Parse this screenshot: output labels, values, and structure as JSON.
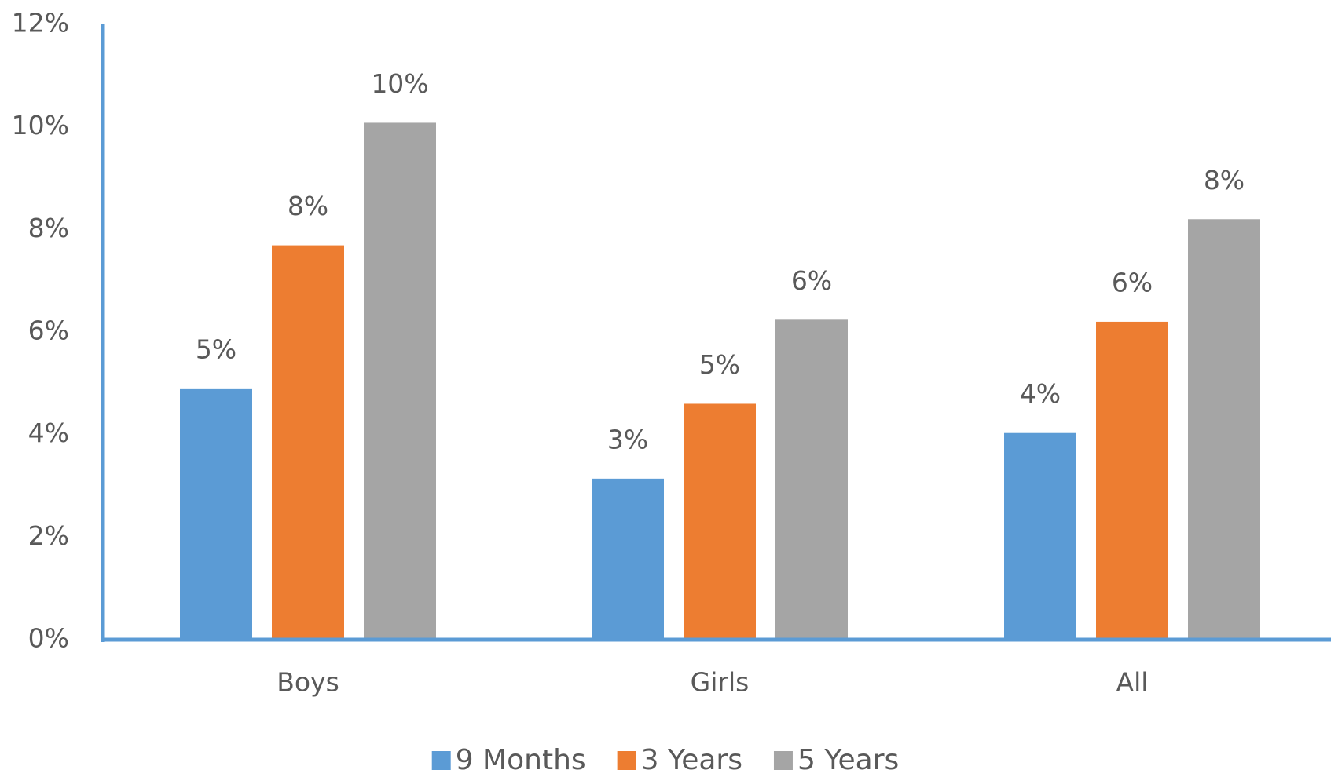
{
  "chart_data": {
    "type": "bar",
    "categories": [
      "Boys",
      "Girls",
      "All"
    ],
    "series": [
      {
        "name": "9 Months",
        "color": "#5b9bd5",
        "values": [
          4.9,
          3.14,
          4.03
        ],
        "value_labels": [
          "5%",
          "3%",
          "4%"
        ]
      },
      {
        "name": "3 Years",
        "color": "#ed7d31",
        "values": [
          7.69,
          4.6,
          6.2
        ],
        "value_labels": [
          "8%",
          "5%",
          "6%"
        ]
      },
      {
        "name": "5 Years",
        "color": "#a5a5a5",
        "values": [
          10.08,
          6.24,
          8.2
        ],
        "value_labels": [
          "10%",
          "6%",
          "8%"
        ]
      }
    ],
    "ylim": [
      0,
      12
    ],
    "yticks": [
      {
        "value": 0,
        "label": "0%"
      },
      {
        "value": 2,
        "label": "2%"
      },
      {
        "value": 4,
        "label": "4%"
      },
      {
        "value": 6,
        "label": "6%"
      },
      {
        "value": 8,
        "label": "8%"
      },
      {
        "value": 10,
        "label": "10%"
      },
      {
        "value": 12,
        "label": "12%"
      }
    ],
    "grid": false,
    "legend": "bottom",
    "axis_color": "#5b9bd5"
  }
}
